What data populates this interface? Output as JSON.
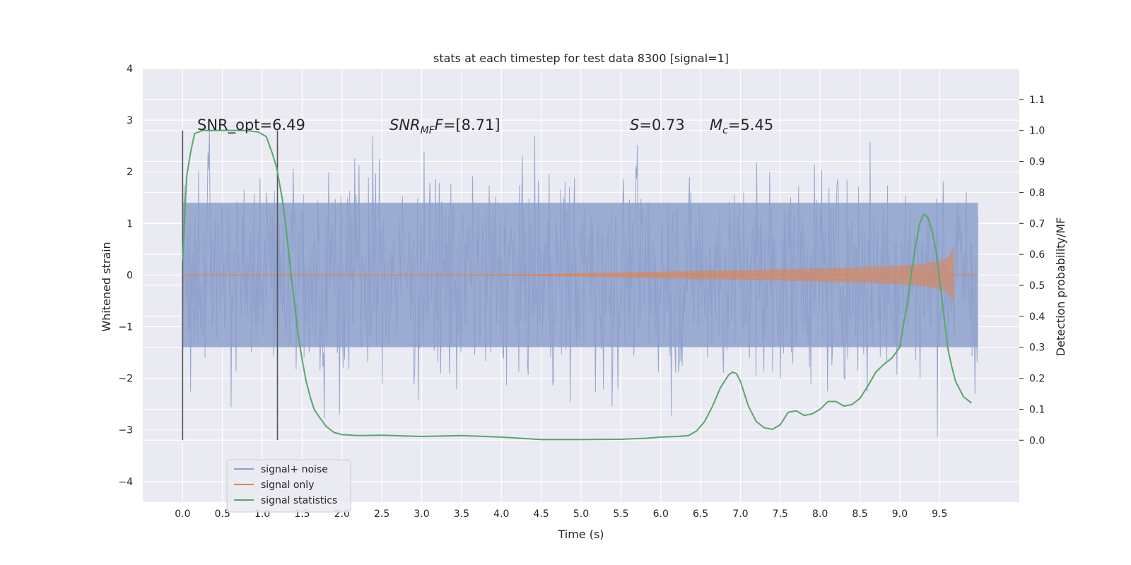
{
  "chart_data": {
    "type": "line",
    "title": "stats at each timestep for test data 8300 [signal=1]",
    "xlabel": "Time (s)",
    "ylabel_left": "Whitened strain",
    "ylabel_right": "Detection probability/MF",
    "xlim": [
      -0.5,
      10.5
    ],
    "ylim_left": [
      -4.4,
      4.0
    ],
    "ylim_right": [
      -0.2,
      1.2
    ],
    "x_ticks": [
      "0.0",
      "0.5",
      "1.0",
      "1.5",
      "2.0",
      "2.5",
      "3.0",
      "3.5",
      "4.0",
      "4.5",
      "5.0",
      "5.5",
      "6.0",
      "6.5",
      "7.0",
      "7.5",
      "8.0",
      "8.5",
      "9.0",
      "9.5"
    ],
    "y_ticks_left": [
      "4",
      "3",
      "2",
      "1",
      "0",
      "−1",
      "−2",
      "−3",
      "−4"
    ],
    "y_ticks_right": [
      "1.1",
      "1.0",
      "0.9",
      "0.8",
      "0.7",
      "0.6",
      "0.5",
      "0.4",
      "0.3",
      "0.2",
      "0.1",
      "0.0"
    ],
    "grid": true,
    "legend_position": "lower-left",
    "colors": {
      "background": "#eaeaf2",
      "grid": "#ffffff",
      "noise": "#8da0cb",
      "signal": "#dd8452",
      "statistics": "#55a868",
      "vline": "#555555"
    },
    "annotations": {
      "snr_opt": "SNR_opt=6.49",
      "snr_mf_main": "SNR",
      "snr_mf_sub": "MF",
      "snr_mf_rest": "=[8.71]",
      "s_main": "S",
      "s_rest": "=0.73",
      "mc_main": "M",
      "mc_sub": "c",
      "mc_rest": "=5.45"
    },
    "vlines_x": [
      0.0,
      1.19
    ],
    "noise_envelope": {
      "x": [
        0.0,
        9.98
      ],
      "typical_range": [
        -1.4,
        1.4
      ]
    },
    "signal_envelope": {
      "x": [
        0.0,
        3.5,
        4.5,
        5.5,
        6.5,
        7.5,
        8.5,
        9.0,
        9.3,
        9.5,
        9.6,
        9.65,
        9.68
      ],
      "amplitude": [
        0.0,
        0.005,
        0.02,
        0.05,
        0.08,
        0.11,
        0.15,
        0.18,
        0.22,
        0.27,
        0.33,
        0.45,
        0.55
      ]
    },
    "series": [
      {
        "name": "signal statistics",
        "x": [
          0.0,
          0.05,
          0.1,
          0.15,
          0.25,
          0.4,
          0.6,
          0.8,
          0.95,
          1.05,
          1.12,
          1.18,
          1.25,
          1.3,
          1.35,
          1.4,
          1.45,
          1.5,
          1.55,
          1.6,
          1.65,
          1.7,
          1.8,
          1.9,
          2.0,
          2.2,
          2.5,
          3.0,
          3.5,
          4.0,
          4.5,
          5.0,
          5.5,
          5.8,
          6.0,
          6.2,
          6.35,
          6.45,
          6.55,
          6.65,
          6.75,
          6.85,
          6.9,
          6.95,
          7.0,
          7.1,
          7.2,
          7.3,
          7.4,
          7.5,
          7.6,
          7.7,
          7.8,
          7.9,
          8.0,
          8.1,
          8.2,
          8.3,
          8.4,
          8.5,
          8.6,
          8.7,
          8.8,
          8.9,
          9.0,
          9.05,
          9.1,
          9.15,
          9.2,
          9.25,
          9.3,
          9.35,
          9.4,
          9.45,
          9.5,
          9.55,
          9.6,
          9.65,
          9.7,
          9.8,
          9.9
        ],
        "y": [
          0.58,
          0.85,
          0.93,
          0.99,
          1.0,
          1.0,
          1.0,
          1.0,
          0.995,
          0.98,
          0.93,
          0.88,
          0.78,
          0.68,
          0.56,
          0.45,
          0.34,
          0.26,
          0.19,
          0.14,
          0.1,
          0.08,
          0.045,
          0.025,
          0.018,
          0.015,
          0.016,
          0.012,
          0.015,
          0.01,
          0.002,
          0.002,
          0.003,
          0.006,
          0.01,
          0.012,
          0.015,
          0.03,
          0.06,
          0.11,
          0.17,
          0.21,
          0.22,
          0.215,
          0.19,
          0.11,
          0.06,
          0.04,
          0.035,
          0.05,
          0.09,
          0.095,
          0.08,
          0.085,
          0.1,
          0.125,
          0.125,
          0.11,
          0.115,
          0.135,
          0.175,
          0.22,
          0.245,
          0.265,
          0.3,
          0.38,
          0.45,
          0.55,
          0.63,
          0.7,
          0.73,
          0.72,
          0.68,
          0.62,
          0.52,
          0.41,
          0.3,
          0.24,
          0.19,
          0.14,
          0.12
        ]
      }
    ],
    "legend": [
      {
        "label": "signal+ noise",
        "color": "#8da0cb"
      },
      {
        "label": "signal only",
        "color": "#dd8452"
      },
      {
        "label": "signal statistics",
        "color": "#55a868"
      }
    ]
  }
}
